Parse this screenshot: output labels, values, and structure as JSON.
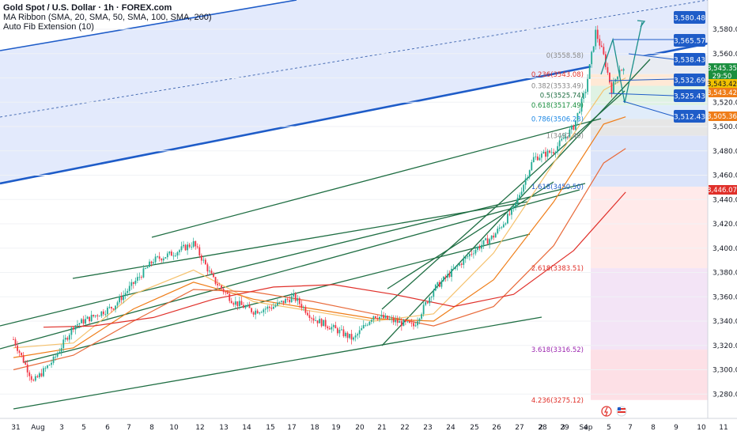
{
  "legend": {
    "title": "Gold Spot / U.S. Dollar · 1h · FOREX.com",
    "ma_ribbon": "MA Ribbon (SMA, 20, SMA, 50, SMA, 100, SMA, 200)",
    "auto_fib": "Auto Fib Extension (10)"
  },
  "colors": {
    "fill_blue": "#d9e3fb",
    "zone_pink": "#fde0e6",
    "zone_gray": "#e6e6e6",
    "trend_green": "#1f6e43",
    "target_blue": "#1e5cc8",
    "current_green": "#1b8f3f",
    "orange": "#ef7d18",
    "red": "#e0302a"
  },
  "chart_data": {
    "type": "candlestick",
    "symbol": "Gold Spot / U.S. Dollar",
    "timeframe": "1h",
    "x_axis_ticks": [
      "31",
      "Aug",
      "3",
      "5",
      "6",
      "7",
      "8",
      "10",
      "12",
      "13",
      "14",
      "15",
      "17",
      "18",
      "19",
      "20",
      "21",
      "22",
      "23",
      "24",
      "25",
      "26",
      "27",
      "28",
      "29",
      "Sep",
      "2",
      "3",
      "4",
      "5",
      "7",
      "8",
      "9",
      "10",
      "11"
    ],
    "y_axis_ticks": [
      3280,
      3300,
      3320,
      3340,
      3360,
      3380,
      3400,
      3420,
      3440,
      3460,
      3480,
      3500,
      3520,
      3540,
      3560,
      3580
    ],
    "ylim": [
      3268,
      3596
    ],
    "price_path": [
      [
        0,
        3325
      ],
      [
        1,
        3290
      ],
      [
        2,
        3308
      ],
      [
        3,
        3336
      ],
      [
        5,
        3352
      ],
      [
        7,
        3390
      ],
      [
        8,
        3396
      ],
      [
        9,
        3404
      ],
      [
        10,
        3374
      ],
      [
        11,
        3356
      ],
      [
        12,
        3348
      ],
      [
        13,
        3352
      ],
      [
        14,
        3360
      ],
      [
        15,
        3342
      ],
      [
        16,
        3334
      ],
      [
        17,
        3325
      ],
      [
        18,
        3345
      ],
      [
        19,
        3340
      ],
      [
        20,
        3336
      ],
      [
        21,
        3366
      ],
      [
        22,
        3382
      ],
      [
        23,
        3398
      ],
      [
        24,
        3410
      ],
      [
        25,
        3432
      ],
      [
        26,
        3474
      ],
      [
        27,
        3480
      ],
      [
        28,
        3500
      ],
      [
        28.6,
        3530
      ],
      [
        29.1,
        3578
      ],
      [
        29.5,
        3558
      ],
      [
        29.9,
        3530
      ],
      [
        30.3,
        3548
      ],
      [
        30.6,
        3545.35
      ]
    ],
    "moving_averages": [
      {
        "name": "SMA 20",
        "color": "#f5c16c",
        "points": [
          [
            0,
            3318
          ],
          [
            3,
            3322
          ],
          [
            6,
            3362
          ],
          [
            9,
            3382
          ],
          [
            12,
            3356
          ],
          [
            15,
            3348
          ],
          [
            18,
            3340
          ],
          [
            21,
            3346
          ],
          [
            24,
            3396
          ],
          [
            27,
            3470
          ],
          [
            29.5,
            3530
          ],
          [
            30.6,
            3540
          ]
        ]
      },
      {
        "name": "SMA 50",
        "color": "#ef7d18",
        "points": [
          [
            0,
            3310
          ],
          [
            3,
            3318
          ],
          [
            6,
            3350
          ],
          [
            9,
            3372
          ],
          [
            12,
            3358
          ],
          [
            15,
            3350
          ],
          [
            18,
            3342
          ],
          [
            21,
            3340
          ],
          [
            24,
            3374
          ],
          [
            27,
            3438
          ],
          [
            29.5,
            3502
          ],
          [
            30.6,
            3508
          ]
        ]
      },
      {
        "name": "SMA 100",
        "color": "#e86a3a",
        "points": [
          [
            0,
            3300
          ],
          [
            3,
            3312
          ],
          [
            6,
            3340
          ],
          [
            9,
            3366
          ],
          [
            12,
            3364
          ],
          [
            15,
            3356
          ],
          [
            18,
            3346
          ],
          [
            21,
            3336
          ],
          [
            24,
            3352
          ],
          [
            27,
            3402
          ],
          [
            29.5,
            3470
          ],
          [
            30.6,
            3482
          ]
        ]
      },
      {
        "name": "SMA 200",
        "color": "#e0302a",
        "points": [
          [
            1.5,
            3335
          ],
          [
            4,
            3336
          ],
          [
            7,
            3343
          ],
          [
            10,
            3358
          ],
          [
            13,
            3368
          ],
          [
            16,
            3370
          ],
          [
            19,
            3362
          ],
          [
            22,
            3352
          ],
          [
            25,
            3362
          ],
          [
            28,
            3398
          ],
          [
            30.6,
            3446.07
          ]
        ]
      }
    ],
    "fib_levels": [
      {
        "label": "0(3558.58)",
        "value": 3558.58,
        "color": "#888888"
      },
      {
        "label": "0.236(3543.08)",
        "value": 3543.08,
        "color": "#e0302a"
      },
      {
        "label": "0.382(3533.49)",
        "value": 3533.49,
        "color": "#888888"
      },
      {
        "label": "0.5(3525.74)",
        "value": 3525.74,
        "color": "#1f6e43"
      },
      {
        "label": "0.618(3517.49)",
        "value": 3517.49,
        "color": "#1b8f3f"
      },
      {
        "label": "0.786(3506.23)",
        "value": 3506.23,
        "color": "#1e88e5"
      },
      {
        "label": "1(3492.40)",
        "value": 3492.4,
        "color": "#888888"
      },
      {
        "label": "1.618(3450.50)",
        "value": 3450.5,
        "color": "#1e5cc8"
      },
      {
        "label": "2.618(3383.51)",
        "value": 3383.51,
        "color": "#e0302a"
      },
      {
        "label": "3.618(3316.52)",
        "value": 3316.52,
        "color": "#9c27b0"
      },
      {
        "label": "4.236(3275.12)",
        "value": 3275.12,
        "color": "#e0302a"
      }
    ],
    "target_labels": [
      "3,580.48",
      "3,565.57",
      "3,538.43",
      "3,532.69",
      "3,525.43",
      "3,512.43"
    ],
    "price_labels": [
      {
        "text": "3,545.35",
        "color": "#1b8f3f"
      },
      {
        "text": "29:50",
        "color": "#1b8f3f"
      },
      {
        "text": "3,543.42",
        "color": "#f2c200"
      },
      {
        "text": "3,543.42",
        "color": "#ef7d18"
      },
      {
        "text": "3,505.36",
        "color": "#ef7d18"
      },
      {
        "text": "3,446.07",
        "color": "#e0302a"
      }
    ]
  }
}
